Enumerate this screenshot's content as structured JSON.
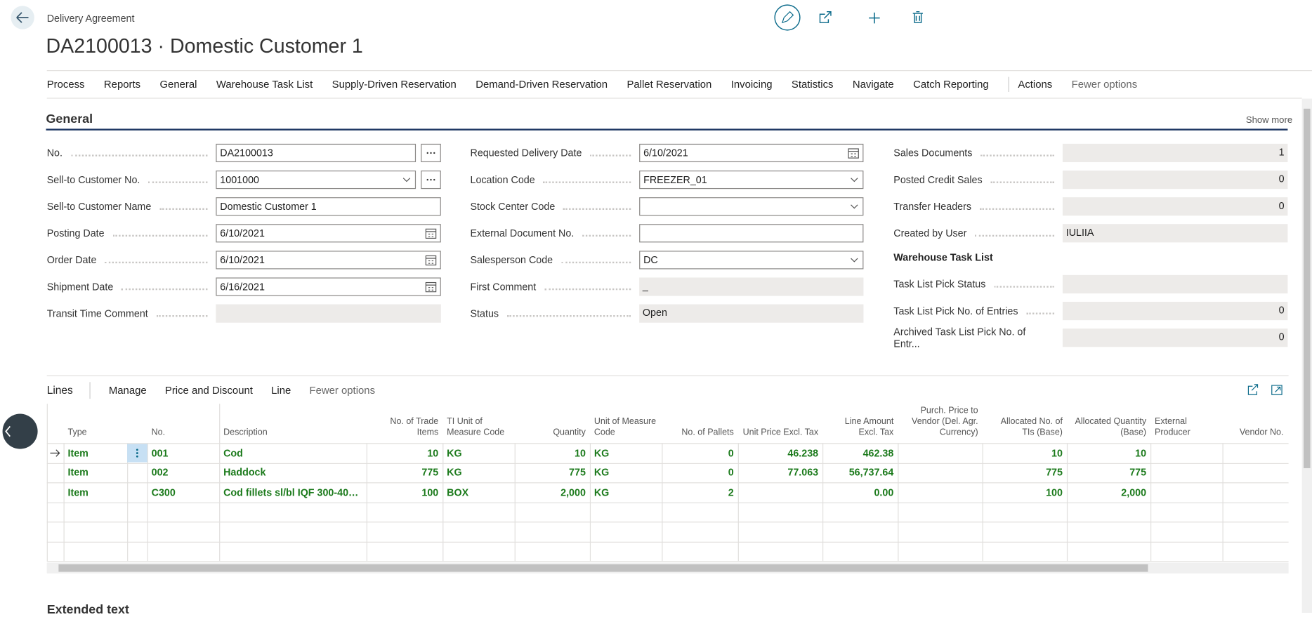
{
  "header": {
    "breadcrumb": "Delivery Agreement",
    "title": "DA2100013 · Domestic Customer 1"
  },
  "menu": {
    "items": [
      "Process",
      "Reports",
      "General",
      "Warehouse Task List",
      "Supply-Driven Reservation",
      "Demand-Driven Reservation",
      "Pallet Reservation",
      "Invoicing",
      "Statistics",
      "Navigate",
      "Catch Reporting"
    ],
    "actions": "Actions",
    "fewer": "Fewer options"
  },
  "general": {
    "title": "General",
    "show_more": "Show more",
    "columns": [
      [
        {
          "label": "No.",
          "value": "DA2100013",
          "control": "lookup"
        },
        {
          "label": "Sell-to Customer No.",
          "value": "1001000",
          "control": "dropdown-lookup"
        },
        {
          "label": "Sell-to Customer Name",
          "value": "Domestic Customer 1",
          "control": "text"
        },
        {
          "label": "Posting Date",
          "value": "6/10/2021",
          "control": "date"
        },
        {
          "label": "Order Date",
          "value": "6/10/2021",
          "control": "date"
        },
        {
          "label": "Shipment Date",
          "value": "6/16/2021",
          "control": "date"
        },
        {
          "label": "Transit Time Comment",
          "control": "readonly"
        }
      ],
      [
        {
          "label": "Requested Delivery Date",
          "value": "6/10/2021",
          "control": "date"
        },
        {
          "label": "Location Code",
          "value": "FREEZER_01",
          "control": "dropdown"
        },
        {
          "label": "Stock Center Code",
          "control": "dropdown"
        },
        {
          "label": "External Document No.",
          "control": "text"
        },
        {
          "label": "Salesperson Code",
          "value": "DC",
          "control": "dropdown"
        },
        {
          "label": "First Comment",
          "value": "_",
          "control": "readonly"
        },
        {
          "label": "Status",
          "value": "Open",
          "control": "readonly"
        }
      ],
      [
        {
          "label": "Sales Documents",
          "value": "1",
          "control": "number"
        },
        {
          "label": "Posted Credit Sales",
          "value": "0",
          "control": "number"
        },
        {
          "label": "Transfer Headers",
          "value": "0",
          "control": "number"
        },
        {
          "label": "Created by User",
          "value": "IULIIA",
          "control": "readonly"
        },
        {
          "subheader": "Warehouse Task List"
        },
        {
          "label": "Task List Pick Status",
          "control": "readonly"
        },
        {
          "label": "Task List Pick No. of Entries",
          "value": "0",
          "control": "number"
        },
        {
          "label": "Archived Task List Pick No. of Entr...",
          "value": "0",
          "control": "number"
        }
      ]
    ]
  },
  "lines": {
    "title": "Lines",
    "tabs": [
      "Manage",
      "Price and Discount",
      "Line",
      "Fewer options"
    ],
    "columns": [
      "Type",
      "No.",
      "Description",
      "No. of Trade Items",
      "TI Unit of Measure Code",
      "Quantity",
      "Unit of Measure Code",
      "No. of Pallets",
      "Unit Price Excl. Tax",
      "Line Amount Excl. Tax",
      "Purch. Price to Vendor (Del. Agr. Currency)",
      "Allocated No. of TIs (Base)",
      "Allocated Quantity (Base)",
      "External Producer",
      "Vendor No."
    ],
    "rows": [
      [
        "Item",
        "001",
        "Cod",
        "10",
        "KG",
        "10",
        "KG",
        "0",
        "46.238",
        "462.38",
        null,
        "10",
        "10",
        null,
        null
      ],
      [
        "Item",
        "002",
        "Haddock",
        "775",
        "KG",
        "775",
        "KG",
        "0",
        "77.063",
        "56,737.64",
        null,
        "775",
        "775",
        null,
        null
      ],
      [
        "Item",
        "C300",
        "Cod fillets sl/bl IQF 300-400 ...",
        "100",
        "BOX",
        "2,000",
        "KG",
        "2",
        null,
        "0.00",
        null,
        "100",
        "2,000",
        null,
        null
      ]
    ]
  },
  "extended_text": "Extended text"
}
